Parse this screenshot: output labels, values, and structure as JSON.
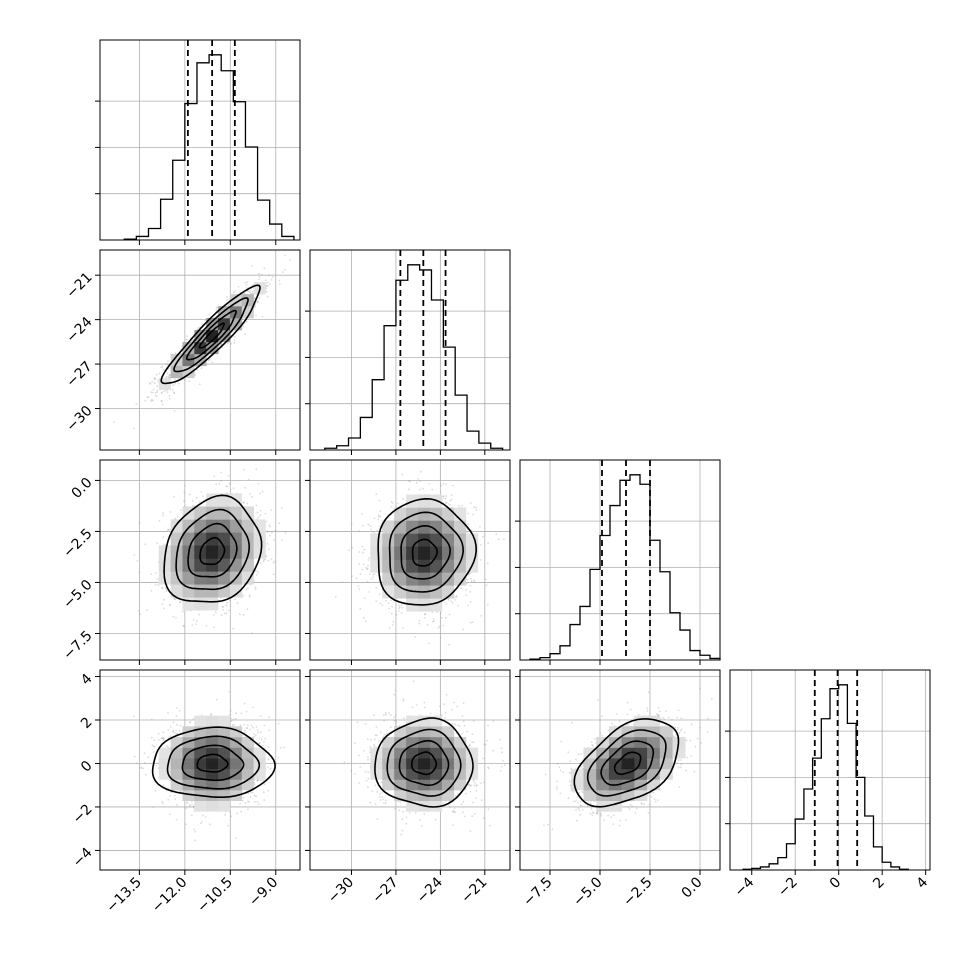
{
  "chart_data": {
    "type": "corner",
    "n_params": 4,
    "grid": true,
    "quantile_lines": "dashed",
    "colors": {
      "line": "#000000",
      "grid": "#b0b0b0",
      "points": "#9a9a9a"
    },
    "params": [
      {
        "ticks": [
          -13.5,
          -12.0,
          -10.5,
          -9.0
        ],
        "tick_labels": [
          "−13.5",
          "−12.0",
          "−10.5",
          "−9.0"
        ],
        "xlim": [
          -14.8,
          -8.2
        ],
        "ylim": [
          -32.8,
          -19.3
        ],
        "quantiles": [
          -11.9,
          -11.1,
          -10.35
        ],
        "histogram": {
          "bin_edges": [
            -14.0,
            -13.6,
            -13.2,
            -12.8,
            -12.4,
            -12.0,
            -11.6,
            -11.2,
            -10.8,
            -10.4,
            -10.0,
            -9.6,
            -9.2,
            -8.8,
            -8.4
          ],
          "counts": [
            1,
            4,
            13,
            46,
            90,
            154,
            200,
            209,
            191,
            156,
            105,
            45,
            18,
            4
          ]
        }
      },
      {
        "ticks": [
          -30,
          -27,
          -24,
          -21
        ],
        "tick_labels": [
          "−30",
          "−27",
          "−24",
          "−21"
        ],
        "xlim": [
          -32.8,
          -19.3
        ],
        "ylim": [
          -8.8,
          1.0
        ],
        "quantiles": [
          -26.7,
          -25.15,
          -23.65
        ],
        "histogram": {
          "bin_edges": [
            -31.8,
            -31.0,
            -30.2,
            -29.4,
            -28.6,
            -27.8,
            -27.0,
            -26.2,
            -25.4,
            -24.6,
            -23.8,
            -23.0,
            -22.2,
            -21.4,
            -20.6,
            -19.8
          ],
          "counts": [
            2,
            5,
            14,
            38,
            82,
            145,
            198,
            216,
            210,
            175,
            120,
            64,
            22,
            8,
            2
          ]
        }
      },
      {
        "ticks": [
          -7.5,
          -5.0,
          -2.5,
          0.0
        ],
        "tick_labels": [
          "−7.5",
          "−5.0",
          "−2.5",
          "0.0"
        ],
        "xlim": [
          -9.0,
          1.0
        ],
        "ylim": [
          -4.9,
          4.3
        ],
        "quantiles": [
          -4.9,
          -3.7,
          -2.5
        ],
        "histogram": {
          "bin_edges": [
            -8.5,
            -8.0,
            -7.5,
            -7.0,
            -6.5,
            -6.0,
            -5.5,
            -5.0,
            -4.5,
            -4.0,
            -3.5,
            -3.0,
            -2.5,
            -2.0,
            -1.5,
            -1.0,
            -0.5,
            0.0,
            0.5,
            1.0
          ],
          "counts": [
            1,
            3,
            8,
            18,
            45,
            68,
            115,
            158,
            196,
            228,
            235,
            223,
            152,
            112,
            60,
            38,
            12,
            6,
            2
          ]
        }
      },
      {
        "ticks": [
          -4,
          -2,
          0,
          2,
          4
        ],
        "tick_labels": [
          "−4",
          "−2",
          "0",
          "2",
          "4"
        ],
        "xlim": [
          -5.0,
          4.2
        ],
        "quantiles": [
          -1.1,
          -0.05,
          0.85
        ],
        "histogram": {
          "bin_edges": [
            -4.4,
            -4.0,
            -3.6,
            -3.2,
            -2.8,
            -2.4,
            -2.0,
            -1.6,
            -1.2,
            -0.8,
            -0.4,
            0.0,
            0.4,
            0.8,
            1.2,
            1.6,
            2.0,
            2.4,
            2.8,
            3.2
          ],
          "counts": [
            1,
            2,
            4,
            8,
            16,
            34,
            66,
            105,
            145,
            196,
            235,
            240,
            190,
            120,
            70,
            30,
            10,
            4,
            1
          ]
        }
      }
    ],
    "pairs": [
      {
        "row": 1,
        "col": 0,
        "center": [
          -11.1,
          -25.1
        ],
        "sigma": [
          0.8,
          1.65
        ],
        "rho": 0.92
      },
      {
        "row": 2,
        "col": 0,
        "center": [
          -11.1,
          -3.5
        ],
        "sigma": [
          0.8,
          1.3
        ],
        "rho": 0.18
      },
      {
        "row": 2,
        "col": 1,
        "center": [
          -25.1,
          -3.55
        ],
        "sigma": [
          1.65,
          1.3
        ],
        "rho": 0.05
      },
      {
        "row": 3,
        "col": 0,
        "center": [
          -11.1,
          0.0
        ],
        "sigma": [
          0.8,
          1.0
        ],
        "rho": 0.0
      },
      {
        "row": 3,
        "col": 1,
        "center": [
          -25.1,
          0.0
        ],
        "sigma": [
          1.65,
          1.0
        ],
        "rho": 0.0
      },
      {
        "row": 3,
        "col": 2,
        "center": [
          -3.6,
          0.0
        ],
        "sigma": [
          1.3,
          1.0
        ],
        "rho": 0.45
      }
    ]
  }
}
